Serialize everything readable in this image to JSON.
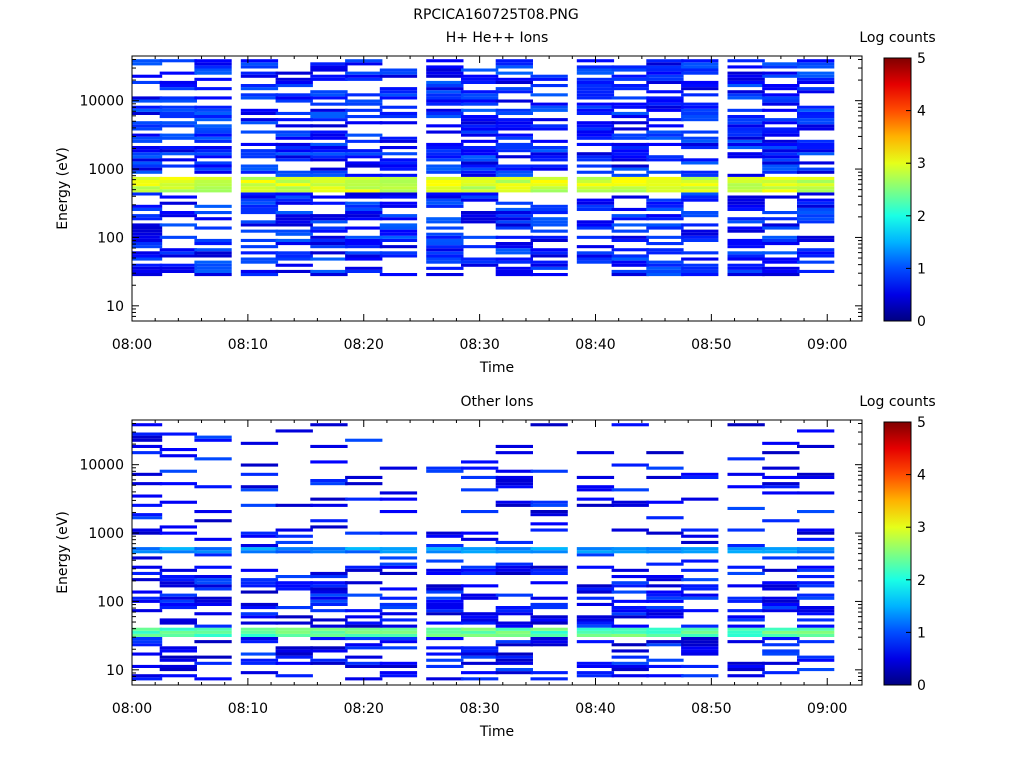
{
  "figure_title": "RPCICA160725T08.PNG",
  "chart_data": [
    {
      "type": "heatmap",
      "title": "H+ He++ Ions",
      "xlabel": "Time",
      "ylabel": "Energy (eV)",
      "x_ticks": [
        "08:00",
        "08:10",
        "08:20",
        "08:30",
        "08:40",
        "08:50",
        "09:00"
      ],
      "xlim": [
        "08:00",
        "09:03"
      ],
      "y_scale": "log",
      "y_ticks": [
        10,
        100,
        1000,
        10000
      ],
      "y_tick_labels": [
        "10",
        "100",
        "1000",
        "10000"
      ],
      "ylim": [
        6,
        45000
      ],
      "colorbar": {
        "label": "Log counts",
        "range": [
          0,
          5
        ],
        "ticks": [
          "0",
          "1",
          "2",
          "3",
          "4",
          "5"
        ]
      },
      "time_columns": [
        "08:01",
        "08:04",
        "08:07",
        "08:11",
        "08:14",
        "08:17",
        "08:20",
        "08:23",
        "08:27",
        "08:30",
        "08:33",
        "08:36",
        "08:40",
        "08:43",
        "08:46",
        "08:49",
        "08:53",
        "08:56",
        "08:59"
      ],
      "features": [
        {
          "description": "continuous band",
          "energy_min": 450,
          "energy_max": 700,
          "log_counts": 2.9
        },
        {
          "description": "sparse background",
          "energy_min": 25,
          "energy_max": 40000,
          "log_counts": 0.4
        }
      ]
    },
    {
      "type": "heatmap",
      "title": "Other Ions",
      "xlabel": "Time",
      "ylabel": "Energy (eV)",
      "x_ticks": [
        "08:00",
        "08:10",
        "08:20",
        "08:30",
        "08:40",
        "08:50",
        "09:00"
      ],
      "xlim": [
        "08:00",
        "09:03"
      ],
      "y_scale": "log",
      "y_ticks": [
        10,
        100,
        1000,
        10000
      ],
      "y_tick_labels": [
        "10",
        "100",
        "1000",
        "10000"
      ],
      "ylim": [
        6,
        45000
      ],
      "colorbar": {
        "label": "Log counts",
        "range": [
          0,
          5
        ],
        "ticks": [
          "0",
          "1",
          "2",
          "3",
          "4",
          "5"
        ]
      },
      "time_columns": [
        "08:01",
        "08:04",
        "08:07",
        "08:11",
        "08:14",
        "08:17",
        "08:20",
        "08:23",
        "08:27",
        "08:30",
        "08:33",
        "08:36",
        "08:40",
        "08:43",
        "08:46",
        "08:49",
        "08:53",
        "08:56",
        "08:59"
      ],
      "features": [
        {
          "description": "continuous band",
          "energy_min": 28,
          "energy_max": 40,
          "log_counts": 2.3
        },
        {
          "description": "continuous band",
          "energy_min": 480,
          "energy_max": 620,
          "log_counts": 1.3
        },
        {
          "description": "sparse background",
          "energy_min": 7,
          "energy_max": 40000,
          "log_counts": 0.3
        }
      ]
    }
  ]
}
